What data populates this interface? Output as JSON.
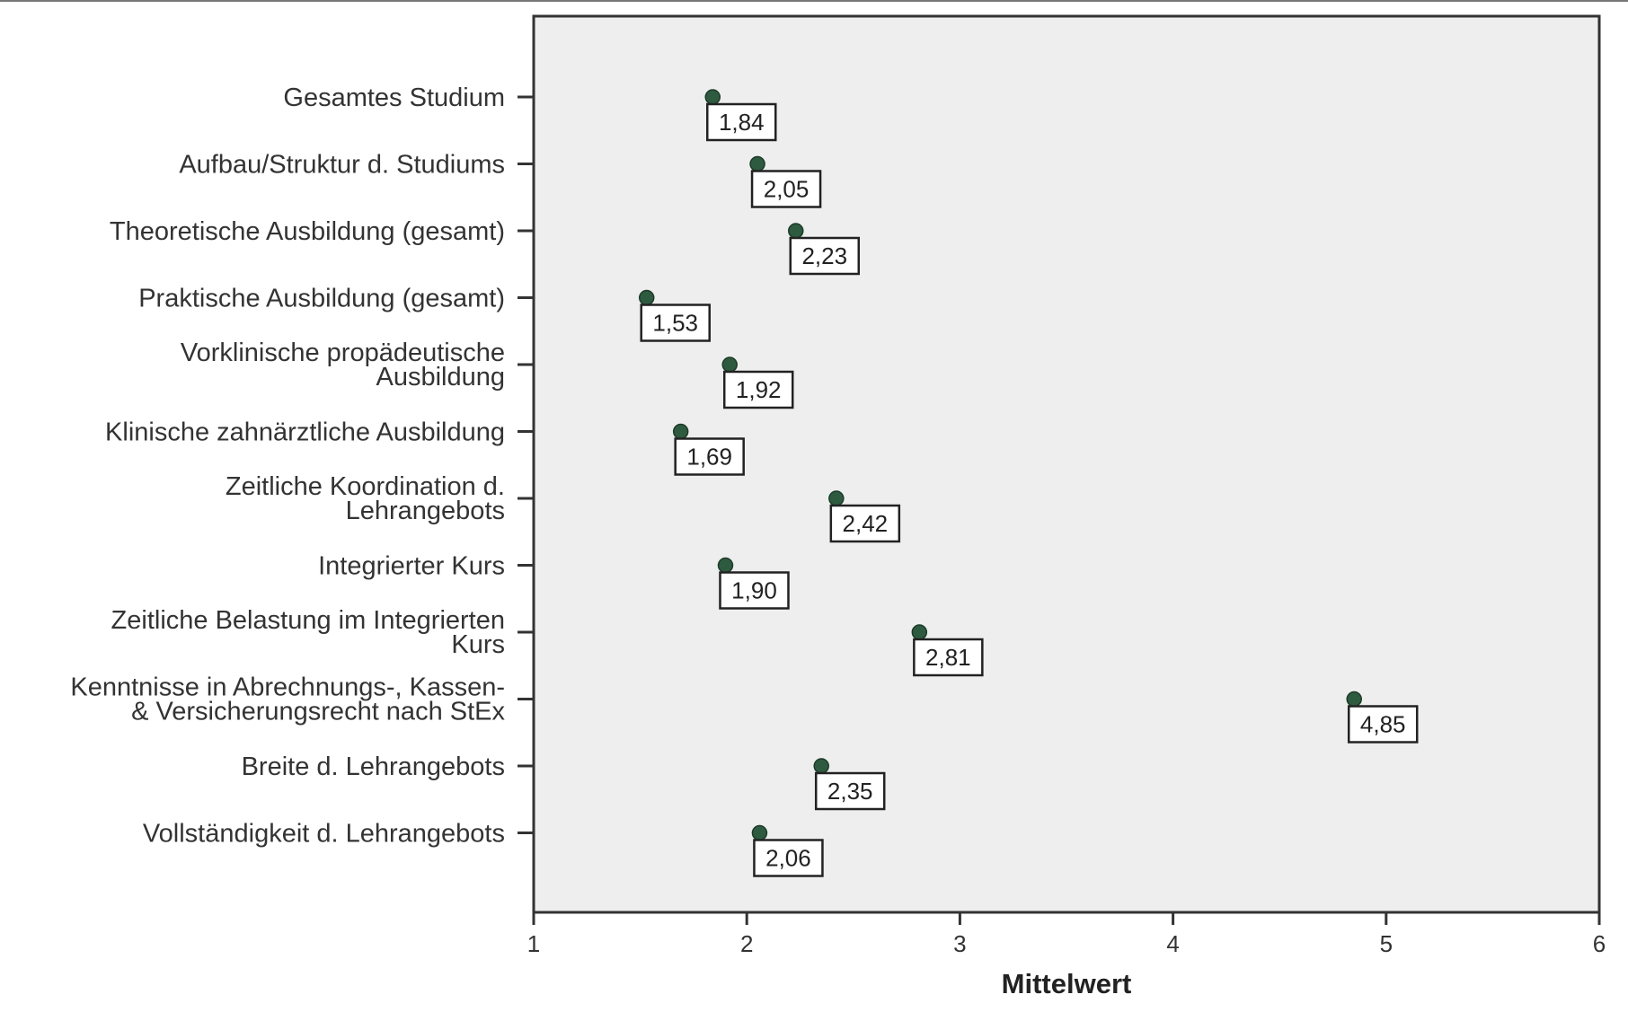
{
  "chart_data": {
    "type": "scatter",
    "categories": [
      "Gesamtes Studium",
      "Aufbau/Struktur d. Studiums",
      "Theoretische Ausbildung (gesamt)",
      "Praktische Ausbildung (gesamt)",
      "Vorklinische propädeutische Ausbildung",
      "Klinische zahnärztliche Ausbildung",
      "Zeitliche Koordination d. Lehrangebots",
      "Integrierter Kurs",
      "Zeitliche Belastung im Integrierten Kurs",
      "Kenntnisse in Abrechnungs-, Kassen- & Versicherungsrecht nach StEx",
      "Breite d. Lehrangebots",
      "Vollständigkeit d. Lehrangebots"
    ],
    "category_lines": [
      [
        "Gesamtes Studium"
      ],
      [
        "Aufbau/Struktur d. Studiums"
      ],
      [
        "Theoretische Ausbildung (gesamt)"
      ],
      [
        "Praktische Ausbildung (gesamt)"
      ],
      [
        "Vorklinische propädeutische",
        "Ausbildung"
      ],
      [
        "Klinische zahnärztliche Ausbildung"
      ],
      [
        "Zeitliche Koordination d.",
        "Lehrangebots"
      ],
      [
        "Integrierter Kurs"
      ],
      [
        "Zeitliche Belastung im Integrierten",
        "Kurs"
      ],
      [
        "Kenntnisse in Abrechnungs-, Kassen-",
        "& Versicherungsrecht nach StEx"
      ],
      [
        "Breite d. Lehrangebots"
      ],
      [
        "Vollständigkeit d. Lehrangebots"
      ]
    ],
    "values": [
      1.84,
      2.05,
      2.23,
      1.53,
      1.92,
      1.69,
      2.42,
      1.9,
      2.81,
      4.85,
      2.35,
      2.06
    ],
    "data_labels": [
      "1,84",
      "2,05",
      "2,23",
      "1,53",
      "1,92",
      "1,69",
      "2,42",
      "1,90",
      "2,81",
      "4,85",
      "2,35",
      "2,06"
    ],
    "xlabel": "Mittelwert",
    "ylabel": "",
    "xlim": [
      1,
      6
    ],
    "xticks": [
      1,
      2,
      3,
      4,
      5,
      6
    ],
    "xtick_labels": [
      "1",
      "2",
      "3",
      "4",
      "5",
      "6"
    ],
    "grid": false,
    "colors": {
      "plot_background": "#eeeeee",
      "point": "#2e5b40",
      "frame": "#333333"
    }
  }
}
